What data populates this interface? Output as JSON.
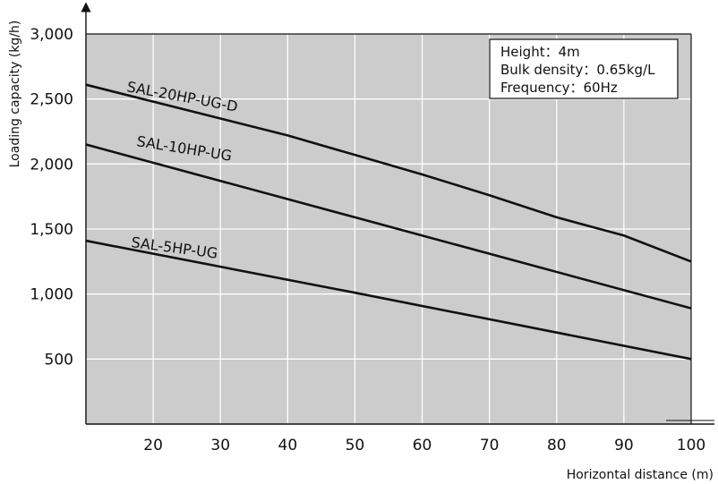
{
  "chart_data": {
    "type": "line",
    "xlabel": "Horizontal distance (m)",
    "ylabel": "Loading capacity (kg/h)",
    "xlim": [
      10,
      100
    ],
    "ylim": [
      0,
      3000
    ],
    "x_ticks": [
      20,
      30,
      40,
      50,
      60,
      70,
      80,
      90,
      100
    ],
    "y_ticks": [
      500,
      1000,
      1500,
      2000,
      2500,
      3000
    ],
    "x_tick_labels": [
      "20",
      "30",
      "40",
      "50",
      "60",
      "70",
      "80",
      "90",
      "100"
    ],
    "y_tick_labels": [
      "500",
      "1,000",
      "1,500",
      "2,000",
      "2,500",
      "3,000"
    ],
    "grid": true,
    "plot_background": "#cccccc",
    "line_color": "#111111",
    "annotation": {
      "lines": [
        "Height：4m",
        "Bulk density：0.65kg/L",
        "Frequency：60Hz"
      ],
      "placement": "top-right"
    },
    "series": [
      {
        "name": "SAL-20HP-UG-D",
        "x": [
          10,
          40,
          50,
          60,
          70,
          80,
          90,
          100
        ],
        "values": [
          2610,
          2220,
          2070,
          1920,
          1760,
          1590,
          1450,
          1250
        ]
      },
      {
        "name": "SAL-10HP-UG",
        "x": [
          10,
          50,
          100
        ],
        "values": [
          2150,
          1590,
          890
        ]
      },
      {
        "name": "SAL-5HP-UG",
        "x": [
          10,
          50,
          100
        ],
        "values": [
          1410,
          1010,
          500
        ]
      }
    ]
  }
}
